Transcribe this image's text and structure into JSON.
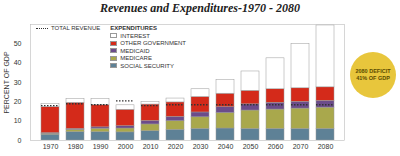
{
  "chart_data": {
    "type": "bar",
    "title": "Revenues and Expenditures-1970 - 2080",
    "y_label": "PERCENT OF GDP",
    "legend_title": "EXPENDITURES",
    "annotation": [
      "2080 DEFICIT",
      "41% OF GDP"
    ],
    "annotation_color": "#e8c63c",
    "categories": [
      "1970",
      "1980",
      "1990",
      "2000",
      "2010",
      "2020",
      "2030",
      "2040",
      "2050",
      "2060",
      "2070",
      "2080"
    ],
    "series": [
      {
        "name": "SOCIAL SECURITY",
        "color": "#5e8196",
        "values": [
          3,
          4.3,
          4.3,
          4.2,
          4.8,
          5.5,
          6,
          6.2,
          6,
          6,
          6,
          6
        ]
      },
      {
        "name": "MEDICARE",
        "color": "#a9a84c",
        "values": [
          0.5,
          1.2,
          1.8,
          2,
          3.5,
          4.5,
          6,
          8,
          9.5,
          10,
          10.5,
          11
        ]
      },
      {
        "name": "MEDICAID",
        "color": "#6b4c8a",
        "values": [
          0.3,
          0.5,
          0.7,
          1.2,
          1.8,
          2.2,
          2.5,
          3,
          3.2,
          3.5,
          3.5,
          3.5
        ]
      },
      {
        "name": "OTHER GOVERNMENT",
        "color": "#d42a1a",
        "values": [
          13.5,
          13.5,
          11.5,
          8.5,
          8.5,
          7.5,
          8,
          7,
          7,
          7,
          7,
          7
        ]
      },
      {
        "name": "INTEREST",
        "color": "#ffffff",
        "values": [
          1.5,
          2,
          3.2,
          2.3,
          1.4,
          2,
          4,
          7,
          10,
          16,
          23,
          32
        ]
      },
      {
        "name": "TOTAL REVENUE",
        "type": "line",
        "line_style": "dotted",
        "color": "#333333",
        "values": [
          18,
          19,
          18.5,
          20.5,
          18,
          18.5,
          18.5,
          18.5,
          18.5,
          18.5,
          18.5,
          18.5
        ]
      }
    ],
    "stacked": true,
    "legend": "top-left",
    "grid": false,
    "ylim": [
      0,
      60
    ],
    "yticks": [
      0,
      10,
      20,
      30,
      40,
      50
    ]
  }
}
